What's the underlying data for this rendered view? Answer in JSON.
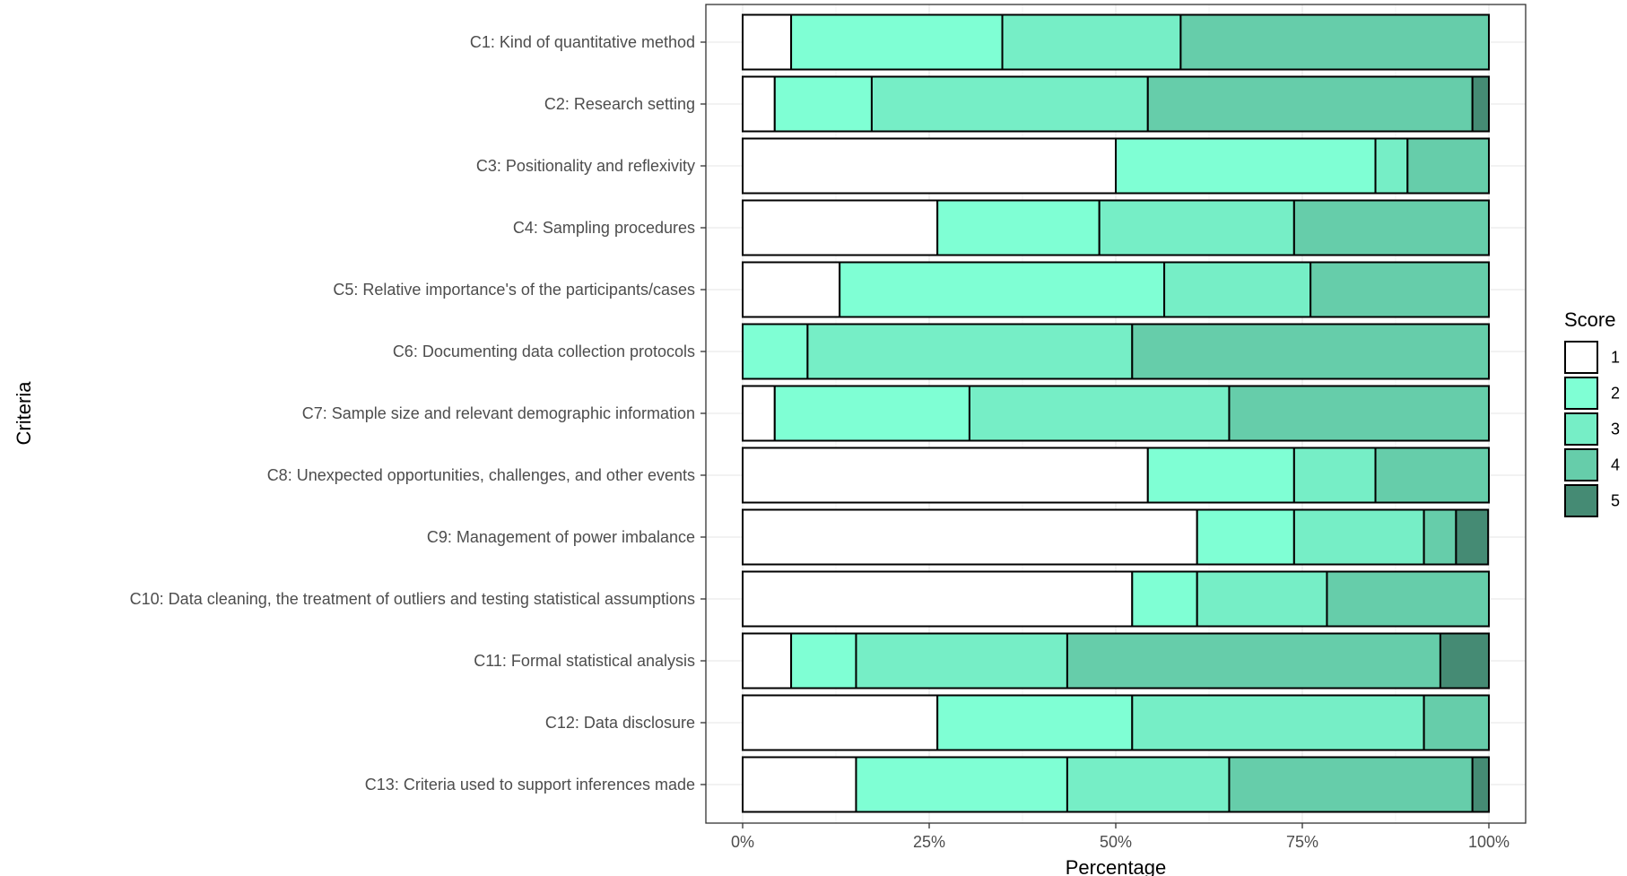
{
  "chart_data": {
    "type": "bar",
    "orientation": "horizontal",
    "stacked": true,
    "normalized": true,
    "xlabel": "Percentage",
    "ylabel": "Criteria",
    "xlim": [
      0,
      100
    ],
    "x_ticks": [
      "0%",
      "25%",
      "50%",
      "75%",
      "100%"
    ],
    "x_tick_values": [
      0,
      25,
      50,
      75,
      100
    ],
    "grid": true,
    "legend": {
      "title": "Score",
      "placement": "right"
    },
    "categories": [
      "C1: Kind of quantitative method",
      "C2: Research setting",
      "C3: Positionality and reflexivity",
      "C4: Sampling procedures",
      "C5: Relative importance's of the participants/cases",
      "C6: Documenting data collection protocols",
      "C7: Sample size and relevant demographic information",
      "C8: Unexpected opportunities, challenges, and other events",
      "C9: Management of power imbalance",
      "C10: Data cleaning, the treatment of outliers and testing statistical assumptions",
      "C11: Formal statistical analysis",
      "C12: Data disclosure",
      "C13: Criteria used to support inferences made"
    ],
    "series": [
      {
        "name": "1",
        "color": "#ffffff",
        "values": [
          6.5,
          4.3,
          50.0,
          26.1,
          13.0,
          0.0,
          4.3,
          54.3,
          60.9,
          52.2,
          6.5,
          26.1,
          15.2
        ]
      },
      {
        "name": "2",
        "color": "#7fffd4",
        "values": [
          28.3,
          13.0,
          34.8,
          21.7,
          43.5,
          8.7,
          26.1,
          19.6,
          13.0,
          8.7,
          8.7,
          26.1,
          28.3
        ]
      },
      {
        "name": "3",
        "color": "#76eec6",
        "values": [
          23.9,
          37.0,
          4.3,
          26.1,
          19.6,
          43.5,
          34.8,
          10.9,
          17.4,
          17.4,
          28.3,
          39.1,
          21.7
        ]
      },
      {
        "name": "4",
        "color": "#66cdaa",
        "values": [
          41.3,
          43.5,
          10.9,
          26.1,
          23.9,
          47.8,
          34.8,
          15.2,
          4.3,
          21.7,
          50.0,
          8.7,
          32.6
        ]
      },
      {
        "name": "5",
        "color": "#458b74",
        "values": [
          0.0,
          2.2,
          0.0,
          0.0,
          0.0,
          0.0,
          0.0,
          0.0,
          4.3,
          0.0,
          6.5,
          0.0,
          2.2
        ]
      }
    ]
  }
}
